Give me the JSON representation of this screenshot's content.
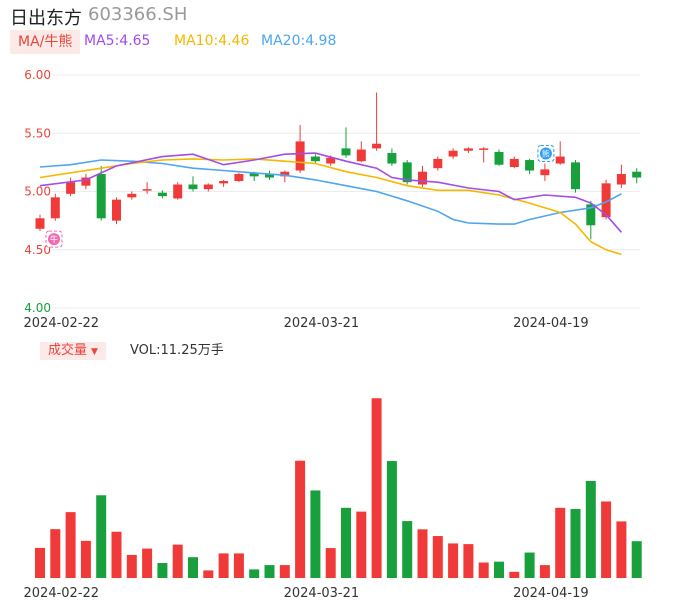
{
  "header": {
    "name": "日出东方",
    "code": "603366.SH",
    "ma_tab": "MA/牛熊",
    "ma5": "MA5:4.65",
    "ma10": "MA10:4.46",
    "ma20": "MA20:4.98"
  },
  "volume_header": {
    "tab": "成交量",
    "vol": "VOL:11.25万手"
  },
  "colors": {
    "up": "#f03a3a",
    "down": "#17a03c",
    "ma5": "#a24de6",
    "ma10": "#f4b800",
    "ma20": "#4fa5ee",
    "price_tick": "#e8453c",
    "low_tick": "#17a03c"
  },
  "markers": {
    "buy": "牛",
    "sell": "熊"
  },
  "chart_data": {
    "type": "candlestick",
    "y_ticks": [
      "6.00",
      "5.50",
      "5.00",
      "4.50",
      "4.00"
    ],
    "ylim": [
      4.0,
      6.0
    ],
    "x_ticks": [
      "2024-02-22",
      "2024-03-21",
      "2024-04-19"
    ],
    "x_tick_index": [
      1,
      18,
      33
    ],
    "candles": [
      {
        "o": 4.68,
        "c": 4.77,
        "h": 4.8,
        "l": 4.66
      },
      {
        "o": 4.77,
        "c": 4.95,
        "h": 4.98,
        "l": 4.75
      },
      {
        "o": 4.98,
        "c": 5.08,
        "h": 5.12,
        "l": 4.96
      },
      {
        "o": 5.05,
        "c": 5.12,
        "h": 5.15,
        "l": 5.02
      },
      {
        "o": 5.15,
        "c": 4.77,
        "h": 5.22,
        "l": 4.75
      },
      {
        "o": 4.75,
        "c": 4.93,
        "h": 4.95,
        "l": 4.72
      },
      {
        "o": 4.95,
        "c": 4.98,
        "h": 5.0,
        "l": 4.93
      },
      {
        "o": 5.01,
        "c": 5.02,
        "h": 5.08,
        "l": 4.98
      },
      {
        "o": 4.99,
        "c": 4.96,
        "h": 5.01,
        "l": 4.94
      },
      {
        "o": 4.94,
        "c": 5.06,
        "h": 5.08,
        "l": 4.93
      },
      {
        "o": 5.06,
        "c": 5.02,
        "h": 5.13,
        "l": 5.0
      },
      {
        "o": 5.02,
        "c": 5.06,
        "h": 5.07,
        "l": 5.0
      },
      {
        "o": 5.07,
        "c": 5.09,
        "h": 5.1,
        "l": 5.04
      },
      {
        "o": 5.09,
        "c": 5.15,
        "h": 5.16,
        "l": 5.08
      },
      {
        "o": 5.16,
        "c": 5.13,
        "h": 5.17,
        "l": 5.09
      },
      {
        "o": 5.15,
        "c": 5.12,
        "h": 5.18,
        "l": 5.1
      },
      {
        "o": 5.13,
        "c": 5.17,
        "h": 5.18,
        "l": 5.08
      },
      {
        "o": 5.18,
        "c": 5.43,
        "h": 5.57,
        "l": 5.16
      },
      {
        "o": 5.3,
        "c": 5.26,
        "h": 5.32,
        "l": 5.24
      },
      {
        "o": 5.24,
        "c": 5.29,
        "h": 5.31,
        "l": 5.22
      },
      {
        "o": 5.37,
        "c": 5.31,
        "h": 5.55,
        "l": 5.29
      },
      {
        "o": 5.26,
        "c": 5.36,
        "h": 5.43,
        "l": 5.25
      },
      {
        "o": 5.37,
        "c": 5.41,
        "h": 5.85,
        "l": 5.35
      },
      {
        "o": 5.33,
        "c": 5.24,
        "h": 5.37,
        "l": 5.22
      },
      {
        "o": 5.25,
        "c": 5.08,
        "h": 5.27,
        "l": 5.06
      },
      {
        "o": 5.06,
        "c": 5.17,
        "h": 5.22,
        "l": 5.04
      },
      {
        "o": 5.2,
        "c": 5.28,
        "h": 5.3,
        "l": 5.18
      },
      {
        "o": 5.3,
        "c": 5.35,
        "h": 5.37,
        "l": 5.28
      },
      {
        "o": 5.35,
        "c": 5.37,
        "h": 5.38,
        "l": 5.33
      },
      {
        "o": 5.36,
        "c": 5.37,
        "h": 5.38,
        "l": 5.25
      },
      {
        "o": 5.34,
        "c": 5.23,
        "h": 5.36,
        "l": 5.22
      },
      {
        "o": 5.21,
        "c": 5.28,
        "h": 5.3,
        "l": 5.2
      },
      {
        "o": 5.27,
        "c": 5.18,
        "h": 5.28,
        "l": 5.15
      },
      {
        "o": 5.14,
        "c": 5.19,
        "h": 5.24,
        "l": 5.09
      },
      {
        "o": 5.24,
        "c": 5.3,
        "h": 5.43,
        "l": 5.23
      },
      {
        "o": 5.25,
        "c": 5.02,
        "h": 5.27,
        "l": 4.99
      },
      {
        "o": 4.89,
        "c": 4.71,
        "h": 4.92,
        "l": 4.59
      },
      {
        "o": 4.78,
        "c": 5.07,
        "h": 5.1,
        "l": 4.76
      },
      {
        "o": 5.06,
        "c": 5.15,
        "h": 5.23,
        "l": 5.03
      },
      {
        "o": 5.17,
        "c": 5.12,
        "h": 5.2,
        "l": 5.07
      }
    ],
    "volume": {
      "label": "VOL",
      "ylim": [
        0,
        100
      ],
      "values": [
        17.5,
        28.4,
        38.3,
        21.6,
        48.1,
        26.9,
        13.4,
        17.1,
        8.7,
        19.4,
        12.1,
        4.4,
        14.3,
        14.3,
        5.0,
        7.5,
        7.5,
        68.2,
        50.9,
        17.4,
        40.8,
        38.6,
        104.5,
        68.0,
        33.1,
        28.3,
        24.4,
        20.1,
        19.7,
        9.0,
        9.5,
        3.6,
        14.8,
        7.5,
        40.8,
        40.1,
        56.4,
        44.5,
        32.9,
        21.4
      ]
    },
    "ma": {
      "MA5": [
        [
          0,
          5.05
        ],
        [
          3,
          5.1
        ],
        [
          5,
          5.22
        ],
        [
          8,
          5.3
        ],
        [
          10,
          5.32
        ],
        [
          12,
          5.23
        ],
        [
          14,
          5.27
        ],
        [
          16,
          5.32
        ],
        [
          18,
          5.33
        ],
        [
          20,
          5.26
        ],
        [
          22,
          5.2
        ],
        [
          23,
          5.12
        ],
        [
          24,
          5.1
        ],
        [
          26,
          5.08
        ],
        [
          28,
          5.03
        ],
        [
          30,
          5.0
        ],
        [
          31,
          4.93
        ],
        [
          33,
          4.97
        ],
        [
          35,
          4.95
        ],
        [
          36,
          4.9
        ],
        [
          37,
          4.8
        ],
        [
          38,
          4.65
        ]
      ],
      "MA10": [
        [
          0,
          5.12
        ],
        [
          4,
          5.2
        ],
        [
          6,
          5.24
        ],
        [
          8,
          5.27
        ],
        [
          10,
          5.28
        ],
        [
          12,
          5.27
        ],
        [
          14,
          5.28
        ],
        [
          16,
          5.26
        ],
        [
          18,
          5.24
        ],
        [
          20,
          5.17
        ],
        [
          22,
          5.12
        ],
        [
          24,
          5.05
        ],
        [
          26,
          5.01
        ],
        [
          28,
          5.01
        ],
        [
          30,
          4.97
        ],
        [
          32,
          4.9
        ],
        [
          34,
          4.82
        ],
        [
          35,
          4.72
        ],
        [
          36,
          4.57
        ],
        [
          37,
          4.5
        ],
        [
          38,
          4.46
        ]
      ],
      "MA20": [
        [
          0,
          5.21
        ],
        [
          2,
          5.23
        ],
        [
          4,
          5.27
        ],
        [
          6,
          5.26
        ],
        [
          8,
          5.24
        ],
        [
          10,
          5.2
        ],
        [
          12,
          5.18
        ],
        [
          14,
          5.16
        ],
        [
          16,
          5.14
        ],
        [
          18,
          5.1
        ],
        [
          20,
          5.05
        ],
        [
          22,
          5.0
        ],
        [
          24,
          4.92
        ],
        [
          26,
          4.83
        ],
        [
          27,
          4.76
        ],
        [
          28,
          4.73
        ],
        [
          30,
          4.72
        ],
        [
          31,
          4.72
        ],
        [
          32,
          4.76
        ],
        [
          34,
          4.82
        ],
        [
          36,
          4.86
        ],
        [
          37,
          4.91
        ],
        [
          38,
          4.98
        ]
      ]
    },
    "marker_candles": {
      "buy": 0,
      "sell": 33
    }
  }
}
